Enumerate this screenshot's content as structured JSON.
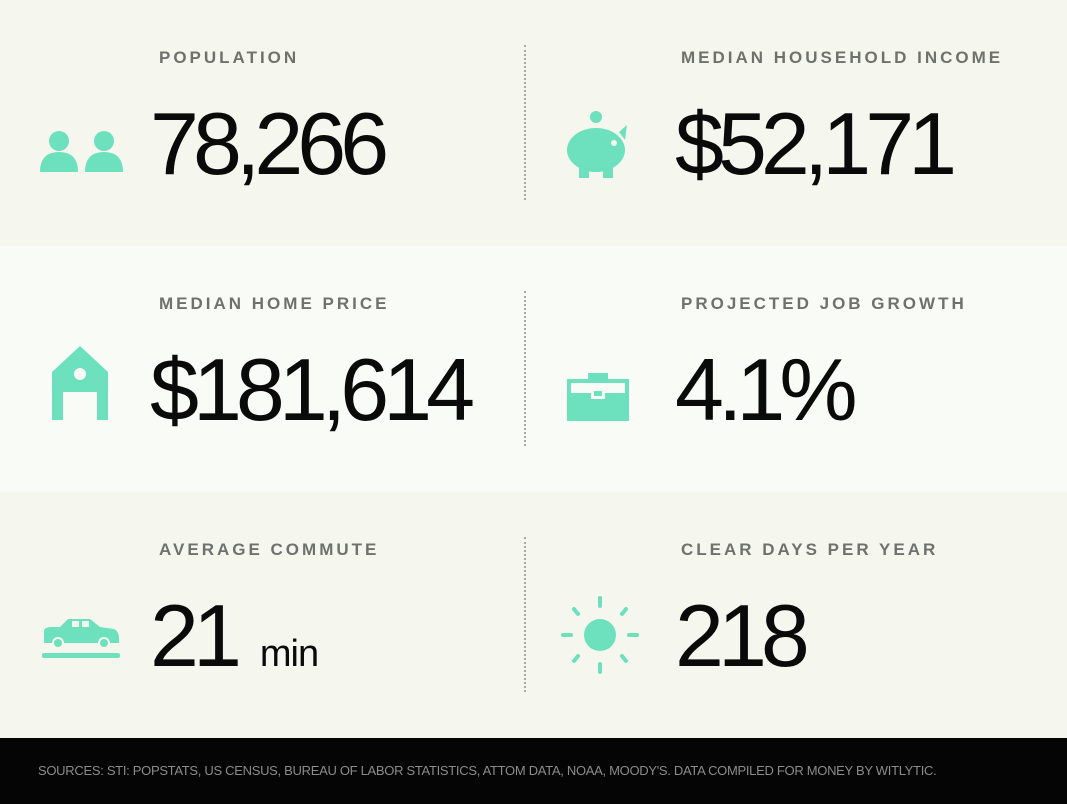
{
  "accent_color": "#6de0bd",
  "stats": [
    {
      "label": "POPULATION",
      "value": "78,266",
      "unit": "",
      "icon": "people-icon"
    },
    {
      "label": "MEDIAN HOUSEHOLD INCOME",
      "value": "$52,171",
      "unit": "",
      "icon": "piggy-bank-icon"
    },
    {
      "label": "MEDIAN HOME PRICE",
      "value": "$181,614",
      "unit": "",
      "icon": "house-icon"
    },
    {
      "label": "PROJECTED JOB GROWTH",
      "value": "4.1%",
      "unit": "",
      "icon": "briefcase-icon"
    },
    {
      "label": "AVERAGE COMMUTE",
      "value": "21",
      "unit": "min",
      "icon": "car-icon"
    },
    {
      "label": "CLEAR DAYS PER YEAR",
      "value": "218",
      "unit": "",
      "icon": "sun-icon"
    }
  ],
  "footer": {
    "sources": "SOURCES: STI: POPSTATS, US CENSUS, BUREAU OF LABOR STATISTICS, ATTOM DATA, NOAA, MOODY'S. DATA COMPILED FOR MONEY BY WITLYTIC."
  }
}
